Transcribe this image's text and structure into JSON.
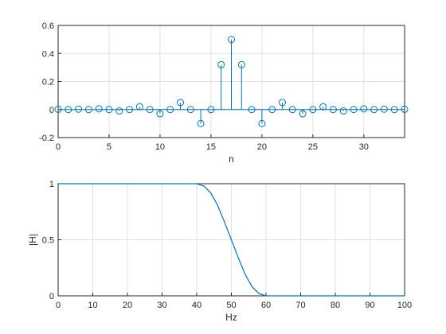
{
  "chart_data": [
    {
      "type": "stem",
      "xlabel": "n",
      "x": [
        0,
        1,
        2,
        3,
        4,
        5,
        6,
        7,
        8,
        9,
        10,
        11,
        12,
        13,
        14,
        15,
        16,
        17,
        18,
        19,
        20,
        21,
        22,
        23,
        24,
        25,
        26,
        27,
        28,
        29,
        30,
        31,
        32,
        33,
        34
      ],
      "values": [
        0.002,
        0,
        0.003,
        0,
        0.005,
        0,
        -0.01,
        0,
        0.02,
        0,
        -0.03,
        0,
        0.05,
        0,
        -0.1,
        0,
        0.32,
        0.5,
        0.32,
        0,
        -0.1,
        0,
        0.05,
        0,
        -0.03,
        0,
        0.02,
        0,
        -0.01,
        0,
        0.005,
        0,
        0.003,
        0,
        0.002
      ],
      "color": "#0072bd",
      "xlim": [
        0,
        34
      ],
      "xticks": [
        0,
        5,
        10,
        15,
        20,
        25,
        30
      ],
      "ylim": [
        -0.2,
        0.6
      ],
      "yticks": [
        -0.2,
        0,
        0.2,
        0.4,
        0.6
      ],
      "grid": true
    },
    {
      "type": "line",
      "xlabel": "Hz",
      "ylabel": "|H|",
      "x": [
        0,
        10,
        20,
        30,
        40,
        42,
        44,
        46,
        48,
        50,
        52,
        54,
        56,
        58,
        60,
        70,
        80,
        90,
        100
      ],
      "values": [
        1,
        1,
        1,
        1,
        1,
        0.98,
        0.92,
        0.81,
        0.66,
        0.5,
        0.34,
        0.19,
        0.08,
        0.02,
        0,
        0,
        0,
        0,
        0
      ],
      "color": "#0072bd",
      "xlim": [
        0,
        100
      ],
      "xticks": [
        0,
        10,
        20,
        30,
        40,
        50,
        60,
        70,
        80,
        90,
        100
      ],
      "ylim": [
        0,
        1
      ],
      "yticks": [
        0,
        0.5,
        1
      ],
      "grid": true
    }
  ]
}
